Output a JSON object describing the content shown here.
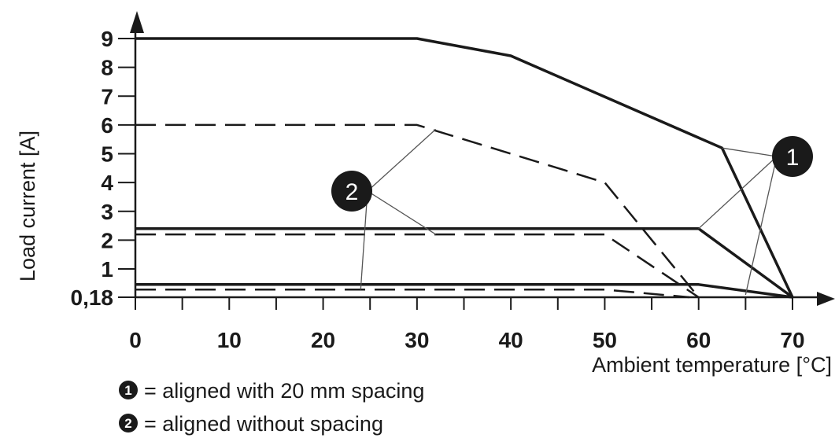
{
  "chart_data": {
    "type": "line",
    "xlabel": "Ambient temperature [°C]",
    "ylabel": "Load current [A]",
    "x_ticks": [
      0,
      10,
      20,
      30,
      40,
      50,
      60,
      70
    ],
    "x_tick_labels": [
      "0",
      "10",
      "20",
      "30",
      "40",
      "50",
      "60",
      "70"
    ],
    "y_tick_values": [
      0.18,
      1,
      2,
      3,
      4,
      5,
      6,
      7,
      8,
      9
    ],
    "y_tick_labels": [
      "0,18",
      "1",
      "2",
      "3",
      "4",
      "5",
      "6",
      "7",
      "8",
      "9"
    ],
    "xlim": [
      0,
      70
    ],
    "ylim": [
      0.18,
      9
    ],
    "series": [
      {
        "group": "1",
        "style": "solid",
        "points": [
          [
            0,
            9
          ],
          [
            30,
            9
          ],
          [
            40,
            8.4
          ],
          [
            62.5,
            5.2
          ],
          [
            70,
            0.18
          ]
        ]
      },
      {
        "group": "1",
        "style": "solid",
        "points": [
          [
            0,
            2.4
          ],
          [
            60,
            2.4
          ],
          [
            70,
            0.18
          ]
        ]
      },
      {
        "group": "1",
        "style": "solid",
        "points": [
          [
            0,
            0.55
          ],
          [
            60,
            0.55
          ],
          [
            70,
            0.18
          ]
        ]
      },
      {
        "group": "2",
        "style": "dashed",
        "points": [
          [
            0,
            6
          ],
          [
            30,
            6
          ],
          [
            50,
            4
          ],
          [
            60,
            0.18
          ]
        ]
      },
      {
        "group": "2",
        "style": "dashed",
        "points": [
          [
            0,
            2.2
          ],
          [
            50,
            2.2
          ],
          [
            60,
            0.18
          ]
        ]
      },
      {
        "group": "2",
        "style": "dashed",
        "points": [
          [
            0,
            0.4
          ],
          [
            50,
            0.4
          ],
          [
            59,
            0.18
          ]
        ]
      }
    ],
    "annotations": [
      {
        "label": "1",
        "callouts_to_series": [
          0,
          1,
          2
        ]
      },
      {
        "label": "2",
        "callouts_to_series": [
          3,
          4,
          5
        ]
      }
    ],
    "legend": [
      {
        "marker": "1",
        "text": "= aligned with 20 mm spacing"
      },
      {
        "marker": "2",
        "text": "= aligned without spacing"
      }
    ],
    "grid": false
  },
  "colors": {
    "ink": "#1a1a1a"
  }
}
